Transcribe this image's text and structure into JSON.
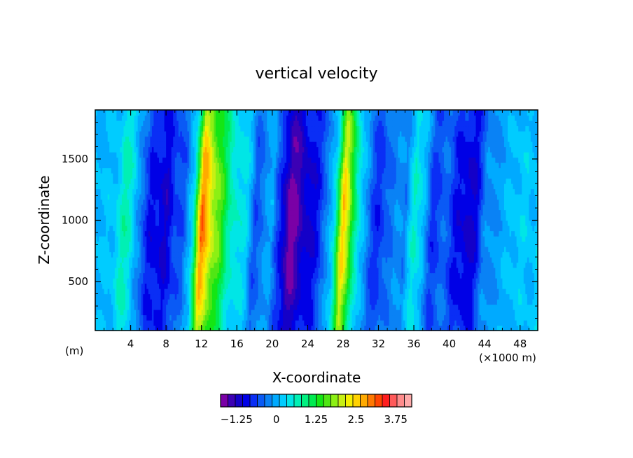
{
  "chart_data": {
    "type": "heatmap",
    "title": "vertical velocity",
    "xlabel": "X-coordinate",
    "ylabel": "Z-coordinate",
    "x_unit_label": "(m)",
    "x_scale_label": "(×1000 m)",
    "xlim": [
      0,
      50
    ],
    "ylim": [
      100,
      1900
    ],
    "x_ticks": [
      4,
      8,
      12,
      16,
      20,
      24,
      28,
      32,
      36,
      40,
      44,
      48
    ],
    "y_ticks": [
      500,
      1000,
      1500
    ],
    "colorbar": {
      "min": -1.75,
      "max": 4.0,
      "step": 0.25,
      "tick_values": [
        -1.25,
        0,
        1.25,
        2.5,
        3.75
      ],
      "tick_labels": [
        "−1.25",
        "0",
        "1.25",
        "2.5",
        "3.75"
      ],
      "colors": [
        "#7a00a6",
        "#3c00b4",
        "#1400c8",
        "#0000e6",
        "#0a2ef5",
        "#0a5af5",
        "#0a82f5",
        "#00aaff",
        "#00ccff",
        "#00e6e6",
        "#00f0b4",
        "#00f080",
        "#00eb50",
        "#14e614",
        "#50e614",
        "#8cf014",
        "#c8f014",
        "#f5f000",
        "#ffd200",
        "#ffaa00",
        "#ff7800",
        "#ff4600",
        "#ff1e1e",
        "#ff5a5a",
        "#ff8c8c",
        "#ffaaaa"
      ]
    },
    "profile_x": [
      0,
      1,
      2,
      3,
      4,
      5,
      6,
      7,
      8,
      9,
      10,
      11,
      12,
      13,
      14,
      15,
      16,
      17,
      18,
      19,
      20,
      21,
      22,
      23,
      24,
      25,
      26,
      27,
      28,
      29,
      30,
      31,
      32,
      33,
      34,
      35,
      36,
      37,
      38,
      39,
      40,
      41,
      42,
      43,
      44,
      45,
      46,
      47,
      48,
      49,
      50
    ],
    "profile_w": [
      0.3,
      0.2,
      0.3,
      0.8,
      0.6,
      0.0,
      -0.9,
      -0.6,
      -1.2,
      -0.3,
      -0.5,
      0.5,
      3.2,
      2.3,
      1.9,
      0.8,
      0.7,
      0.4,
      -0.3,
      -0.2,
      0.2,
      -0.8,
      -1.6,
      -1.2,
      -1.0,
      -0.7,
      -0.3,
      0.6,
      2.7,
      1.5,
      0.3,
      -0.3,
      -0.6,
      -0.4,
      0.1,
      -0.3,
      0.9,
      0.2,
      -0.5,
      -0.4,
      -0.4,
      -0.8,
      -1.0,
      -0.8,
      -0.2,
      0.1,
      0.0,
      0.4,
      0.3,
      0.3,
      0.4
    ]
  }
}
